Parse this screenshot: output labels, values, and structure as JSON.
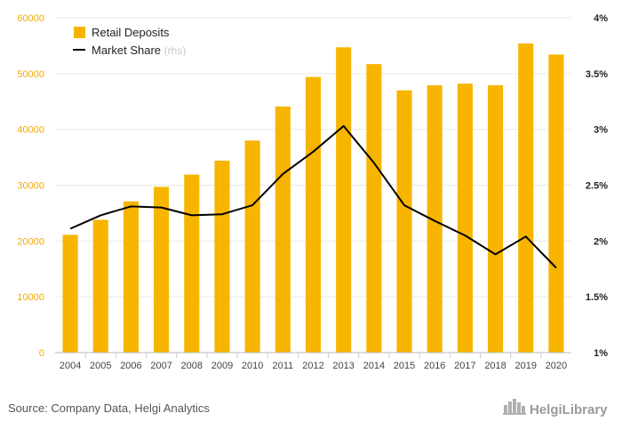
{
  "chart_data": {
    "type": "bar",
    "categories": [
      "2004",
      "2005",
      "2006",
      "2007",
      "2008",
      "2009",
      "2010",
      "2011",
      "2012",
      "2013",
      "2014",
      "2015",
      "2016",
      "2017",
      "2018",
      "2019",
      "2020"
    ],
    "series": [
      {
        "name": "Retail Deposits",
        "type": "bar",
        "axis": "left",
        "values": [
          21100,
          23800,
          27100,
          29700,
          31900,
          34400,
          38000,
          44100,
          49400,
          54700,
          51700,
          47000,
          47900,
          48200,
          47900,
          55400,
          53400
        ]
      },
      {
        "name": "Market Share",
        "type": "line",
        "axis": "right",
        "values": [
          2.11,
          2.23,
          2.31,
          2.3,
          2.23,
          2.24,
          2.32,
          2.6,
          2.8,
          3.03,
          2.7,
          2.32,
          2.18,
          2.05,
          1.88,
          2.04,
          1.76
        ]
      }
    ],
    "legend_suffix": "(rhs)",
    "ylim": [
      0,
      60000
    ],
    "yticks": [
      0,
      10000,
      20000,
      30000,
      40000,
      50000,
      60000
    ],
    "ylim_right": [
      1,
      4
    ],
    "yticks_right": [
      "1%",
      "1.5%",
      "2%",
      "2.5%",
      "3%",
      "3.5%",
      "4%"
    ],
    "grid": true,
    "legend": "top-left",
    "colors": {
      "bar": "#f7b500",
      "line": "#000000",
      "left_ticks": "#f0a800"
    }
  },
  "footer": {
    "source": "Source: Company Data, Helgi Analytics",
    "brand": "HelgiLibrary"
  }
}
